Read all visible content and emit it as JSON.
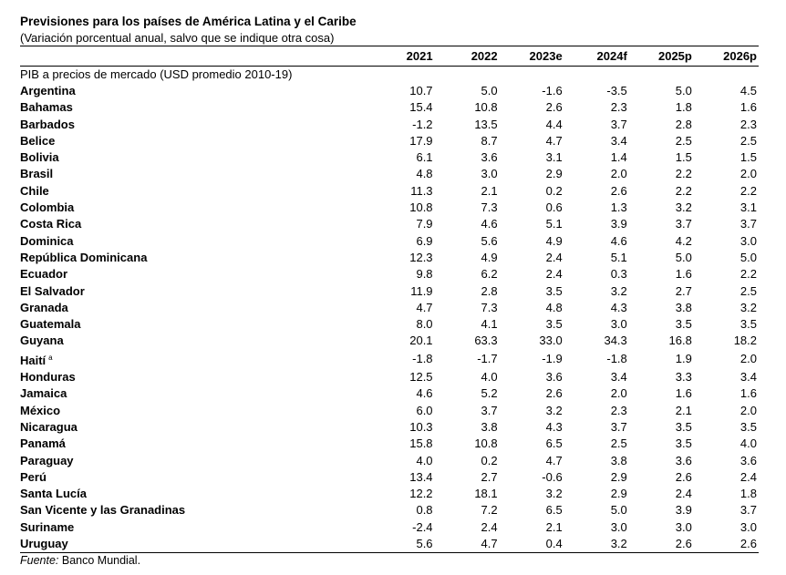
{
  "title": "Previsiones para los países de América Latina y el Caribe",
  "subtitle": "(Variación porcentual anual, salvo que se indique otra cosa)",
  "columns": [
    "",
    "2021",
    "2022",
    "2023e",
    "2024f",
    "2025p",
    "2026p"
  ],
  "section_label": "PIB a precios de mercado (USD promedio 2010-19)",
  "rows": [
    {
      "country": "Argentina",
      "sup": "",
      "values": [
        "10.7",
        "5.0",
        "-1.6",
        "-3.5",
        "5.0",
        "4.5"
      ]
    },
    {
      "country": "Bahamas",
      "sup": "",
      "values": [
        "15.4",
        "10.8",
        "2.6",
        "2.3",
        "1.8",
        "1.6"
      ]
    },
    {
      "country": "Barbados",
      "sup": "",
      "values": [
        "-1.2",
        "13.5",
        "4.4",
        "3.7",
        "2.8",
        "2.3"
      ]
    },
    {
      "country": "Belice",
      "sup": "",
      "values": [
        "17.9",
        "8.7",
        "4.7",
        "3.4",
        "2.5",
        "2.5"
      ]
    },
    {
      "country": "Bolivia",
      "sup": "",
      "values": [
        "6.1",
        "3.6",
        "3.1",
        "1.4",
        "1.5",
        "1.5"
      ]
    },
    {
      "country": "Brasil",
      "sup": "",
      "values": [
        "4.8",
        "3.0",
        "2.9",
        "2.0",
        "2.2",
        "2.0"
      ]
    },
    {
      "country": "Chile",
      "sup": "",
      "values": [
        "11.3",
        "2.1",
        "0.2",
        "2.6",
        "2.2",
        "2.2"
      ]
    },
    {
      "country": "Colombia",
      "sup": "",
      "values": [
        "10.8",
        "7.3",
        "0.6",
        "1.3",
        "3.2",
        "3.1"
      ]
    },
    {
      "country": "Costa Rica",
      "sup": "",
      "values": [
        "7.9",
        "4.6",
        "5.1",
        "3.9",
        "3.7",
        "3.7"
      ]
    },
    {
      "country": "Dominica",
      "sup": "",
      "values": [
        "6.9",
        "5.6",
        "4.9",
        "4.6",
        "4.2",
        "3.0"
      ]
    },
    {
      "country": "República Dominicana",
      "sup": "",
      "values": [
        "12.3",
        "4.9",
        "2.4",
        "5.1",
        "5.0",
        "5.0"
      ]
    },
    {
      "country": "Ecuador",
      "sup": "",
      "values": [
        "9.8",
        "6.2",
        "2.4",
        "0.3",
        "1.6",
        "2.2"
      ]
    },
    {
      "country": "El Salvador",
      "sup": "",
      "values": [
        "11.9",
        "2.8",
        "3.5",
        "3.2",
        "2.7",
        "2.5"
      ]
    },
    {
      "country": "Granada",
      "sup": "",
      "values": [
        "4.7",
        "7.3",
        "4.8",
        "4.3",
        "3.8",
        "3.2"
      ]
    },
    {
      "country": "Guatemala",
      "sup": "",
      "values": [
        "8.0",
        "4.1",
        "3.5",
        "3.0",
        "3.5",
        "3.5"
      ]
    },
    {
      "country": "Guyana",
      "sup": "",
      "values": [
        "20.1",
        "63.3",
        "33.0",
        "34.3",
        "16.8",
        "18.2"
      ]
    },
    {
      "country": "Haití",
      "sup": "a",
      "values": [
        "-1.8",
        "-1.7",
        "-1.9",
        "-1.8",
        "1.9",
        "2.0"
      ]
    },
    {
      "country": "Honduras",
      "sup": "",
      "values": [
        "12.5",
        "4.0",
        "3.6",
        "3.4",
        "3.3",
        "3.4"
      ]
    },
    {
      "country": "Jamaica",
      "sup": "",
      "values": [
        "4.6",
        "5.2",
        "2.6",
        "2.0",
        "1.6",
        "1.6"
      ]
    },
    {
      "country": "México",
      "sup": "",
      "values": [
        "6.0",
        "3.7",
        "3.2",
        "2.3",
        "2.1",
        "2.0"
      ]
    },
    {
      "country": "Nicaragua",
      "sup": "",
      "values": [
        "10.3",
        "3.8",
        "4.3",
        "3.7",
        "3.5",
        "3.5"
      ]
    },
    {
      "country": "Panamá",
      "sup": "",
      "values": [
        "15.8",
        "10.8",
        "6.5",
        "2.5",
        "3.5",
        "4.0"
      ]
    },
    {
      "country": "Paraguay",
      "sup": "",
      "values": [
        "4.0",
        "0.2",
        "4.7",
        "3.8",
        "3.6",
        "3.6"
      ]
    },
    {
      "country": "Perú",
      "sup": "",
      "values": [
        "13.4",
        "2.7",
        "-0.6",
        "2.9",
        "2.6",
        "2.4"
      ]
    },
    {
      "country": "Santa Lucía",
      "sup": "",
      "values": [
        "12.2",
        "18.1",
        "3.2",
        "2.9",
        "2.4",
        "1.8"
      ]
    },
    {
      "country": "San Vicente y las Granadinas",
      "sup": "",
      "values": [
        "0.8",
        "7.2",
        "6.5",
        "5.0",
        "3.9",
        "3.7"
      ]
    },
    {
      "country": "Suriname",
      "sup": "",
      "values": [
        "-2.4",
        "2.4",
        "2.1",
        "3.0",
        "3.0",
        "3.0"
      ]
    },
    {
      "country": "Uruguay",
      "sup": "",
      "values": [
        "5.6",
        "4.7",
        "0.4",
        "3.2",
        "2.6",
        "2.6"
      ]
    }
  ],
  "source_label": "Fuente:",
  "source_text": "Banco Mundial."
}
